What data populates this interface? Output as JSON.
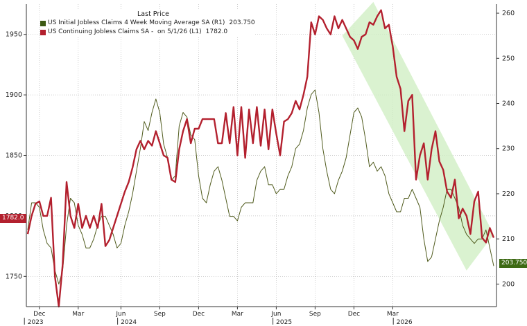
{
  "chart_data": {
    "type": "line",
    "legend": {
      "header": "Last Price",
      "placement": "top-left"
    },
    "series": [
      {
        "name": "US Initial Jobless Claims 4 Week Moving Average SA (R1)",
        "last_value": "203.750",
        "color": "#4f5a1c",
        "axis": "right",
        "x": [
          0,
          1,
          2,
          3,
          4,
          5,
          6,
          7,
          8,
          9,
          10,
          11,
          12,
          13,
          14,
          15,
          16,
          17,
          18,
          19,
          20,
          21,
          22,
          23,
          24,
          25,
          26,
          27,
          28,
          29,
          30,
          31,
          32,
          33,
          34,
          35,
          36,
          37,
          38,
          39,
          40,
          41,
          42,
          43,
          44,
          45,
          46,
          47,
          48,
          49,
          50,
          51,
          52,
          53,
          54,
          55,
          56,
          57,
          58,
          59,
          60,
          61,
          62,
          63,
          64,
          65,
          66,
          67,
          68,
          69,
          70,
          71,
          72,
          73,
          74,
          75,
          76,
          77,
          78,
          79,
          80,
          81,
          82,
          83,
          84,
          85,
          86,
          87,
          88,
          89,
          90,
          91,
          92,
          93,
          94,
          95,
          96,
          97,
          98,
          99,
          100,
          101,
          102,
          103,
          104,
          105,
          106,
          107,
          108,
          109,
          110,
          111,
          112,
          113,
          114,
          115,
          116,
          117,
          118,
          119,
          120
        ],
        "values": [
          212,
          218,
          218,
          217,
          212,
          209,
          208,
          203,
          200,
          203,
          213,
          219,
          218,
          213,
          211,
          208,
          208,
          210,
          213,
          215,
          215,
          213,
          211,
          208,
          209,
          213,
          216,
          220,
          225,
          230,
          236,
          234,
          238,
          241,
          238,
          231,
          228,
          223,
          224,
          235,
          238,
          237,
          233,
          232,
          224,
          219,
          218,
          222,
          225,
          226,
          223,
          219,
          215,
          215,
          214,
          217,
          218,
          218,
          218,
          223,
          225,
          226,
          222,
          222,
          220,
          221,
          221,
          224,
          226,
          230,
          231,
          234,
          239,
          242,
          243,
          238,
          230,
          225,
          221,
          220,
          223,
          225,
          228,
          233,
          238,
          239,
          237,
          232,
          226,
          227,
          225,
          226,
          224,
          220,
          218,
          216,
          216,
          219,
          219,
          221,
          219,
          217,
          210,
          205,
          206,
          210,
          214,
          217,
          221,
          221,
          219,
          217,
          213,
          211,
          210,
          209,
          210,
          210,
          212,
          208,
          204
        ]
      },
      {
        "name": "US Continuing Jobless Claims SA -  on 5/1/26 (L1)",
        "last_value": "1782.0",
        "color": "#b3202e",
        "axis": "left",
        "x": [
          0,
          1,
          2,
          3,
          4,
          5,
          6,
          7,
          8,
          9,
          10,
          11,
          12,
          13,
          14,
          15,
          16,
          17,
          18,
          19,
          20,
          21,
          22,
          23,
          24,
          25,
          26,
          27,
          28,
          29,
          30,
          31,
          32,
          33,
          34,
          35,
          36,
          37,
          38,
          39,
          40,
          41,
          42,
          43,
          44,
          45,
          46,
          47,
          48,
          49,
          50,
          51,
          52,
          53,
          54,
          55,
          56,
          57,
          58,
          59,
          60,
          61,
          62,
          63,
          64,
          65,
          66,
          67,
          68,
          69,
          70,
          71,
          72,
          73,
          74,
          75,
          76,
          77,
          78,
          79,
          80,
          81,
          82,
          83,
          84,
          85,
          86,
          87,
          88,
          89,
          90,
          91,
          92,
          93,
          94,
          95,
          96,
          97,
          98,
          99,
          100,
          101,
          102,
          103,
          104,
          105,
          106,
          107,
          108,
          109,
          110,
          111,
          112,
          113,
          114,
          115,
          116,
          117,
          118,
          119,
          120
        ],
        "values": [
          1785,
          1800,
          1810,
          1812,
          1800,
          1800,
          1815,
          1750,
          1725,
          1760,
          1828,
          1800,
          1790,
          1810,
          1790,
          1800,
          1790,
          1800,
          1790,
          1810,
          1775,
          1780,
          1790,
          1800,
          1810,
          1820,
          1828,
          1840,
          1855,
          1862,
          1855,
          1862,
          1858,
          1870,
          1860,
          1850,
          1848,
          1830,
          1828,
          1855,
          1870,
          1880,
          1860,
          1872,
          1872,
          1880,
          1880,
          1880,
          1880,
          1860,
          1860,
          1885,
          1860,
          1890,
          1850,
          1890,
          1848,
          1888,
          1860,
          1890,
          1858,
          1888,
          1855,
          1888,
          1868,
          1850,
          1878,
          1880,
          1885,
          1895,
          1888,
          1900,
          1915,
          1960,
          1950,
          1965,
          1962,
          1955,
          1950,
          1965,
          1955,
          1962,
          1955,
          1948,
          1945,
          1938,
          1948,
          1950,
          1960,
          1958,
          1965,
          1970,
          1955,
          1958,
          1940,
          1915,
          1905,
          1870,
          1895,
          1900,
          1830,
          1850,
          1860,
          1830,
          1855,
          1870,
          1845,
          1838,
          1820,
          1815,
          1830,
          1798,
          1806,
          1800,
          1785,
          1812,
          1820,
          1782,
          1778,
          1790,
          1782
        ]
      }
    ],
    "y_left": {
      "range": [
        1725,
        1975
      ],
      "ticks": [
        1750,
        1800,
        1850,
        1900,
        1950
      ],
      "tick_labels": [
        "1750",
        "1800",
        "1850",
        "1900",
        "1950"
      ]
    },
    "y_right": {
      "range": [
        195,
        262
      ],
      "ticks": [
        200,
        210,
        220,
        230,
        240,
        250,
        260
      ],
      "tick_labels": [
        "200",
        "210",
        "220",
        "230",
        "240",
        "250",
        "260"
      ]
    },
    "x_axis": {
      "month_ticks": [
        {
          "i": 3,
          "label": "Dec"
        },
        {
          "i": 13,
          "label": "Mar"
        },
        {
          "i": 24,
          "label": "Jun"
        },
        {
          "i": 34,
          "label": "Sep"
        },
        {
          "i": 44,
          "label": "Dec"
        },
        {
          "i": 54,
          "label": "Mar"
        },
        {
          "i": 64,
          "label": "Jun"
        },
        {
          "i": 74,
          "label": "Sep"
        },
        {
          "i": 84,
          "label": "Dec"
        },
        {
          "i": 94,
          "label": "Mar"
        }
      ],
      "year_ticks": [
        {
          "i": 2,
          "label": "2023"
        },
        {
          "i": 26,
          "label": "2024"
        },
        {
          "i": 66,
          "label": "2025"
        },
        {
          "i": 97,
          "label": "2026"
        }
      ]
    },
    "annotation": {
      "type": "shaded-band",
      "color": "#cdeec0",
      "description": "downtrend channel"
    },
    "grid": true
  }
}
